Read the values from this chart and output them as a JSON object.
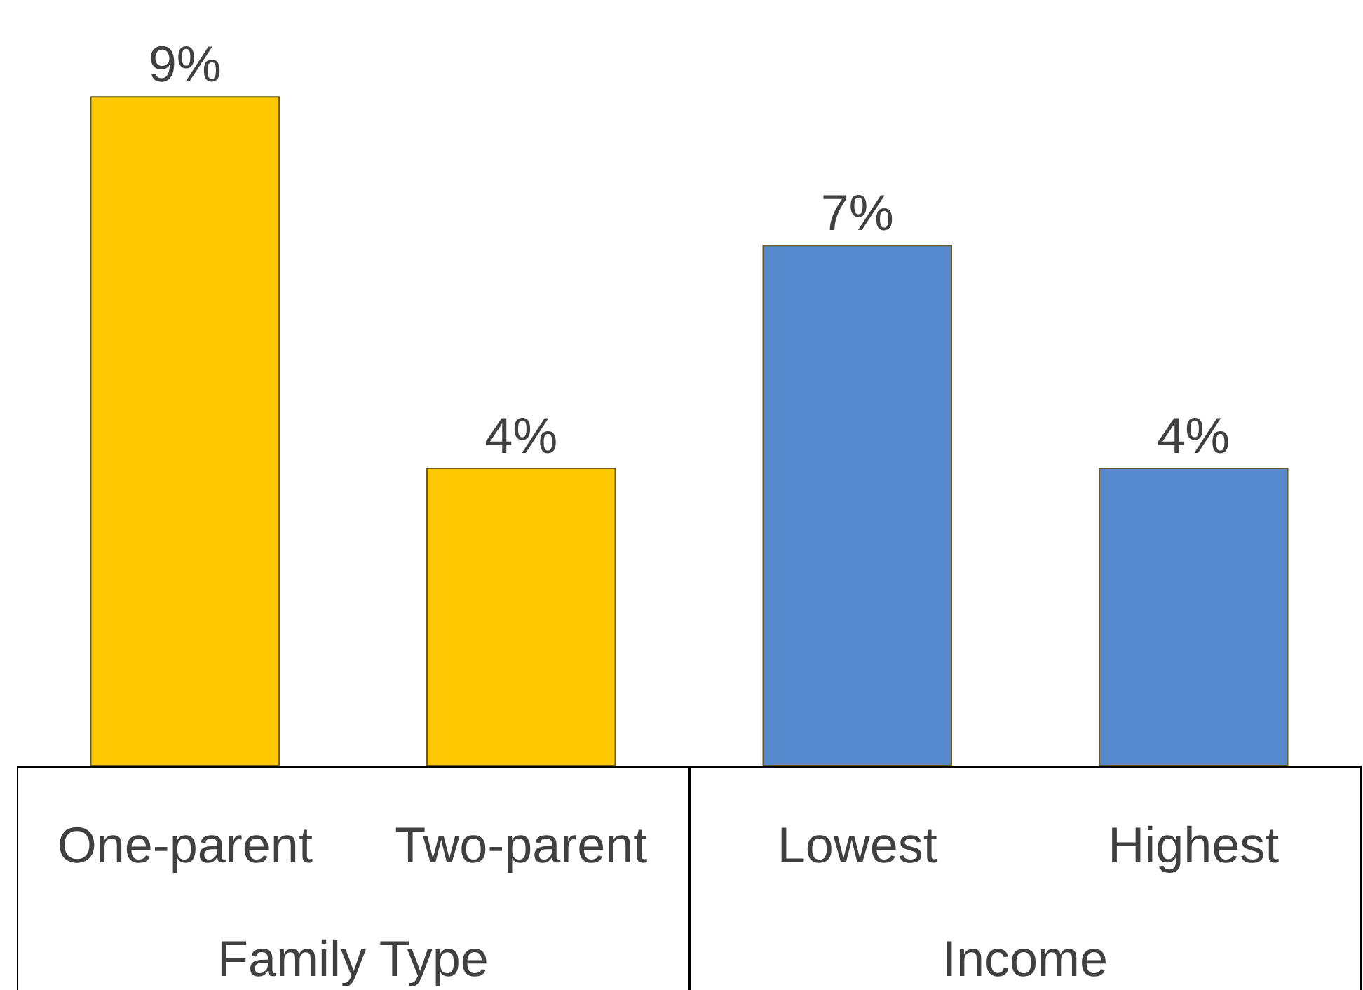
{
  "chart_data": {
    "type": "bar",
    "categories": [
      "One-parent",
      "Two-parent",
      "Lowest",
      "Highest"
    ],
    "values": [
      9,
      4,
      7,
      4
    ],
    "value_labels": [
      "9%",
      "4%",
      "7%",
      "4%"
    ],
    "colors": [
      "#ffc800",
      "#ffc800",
      "#5588cc",
      "#5588cc"
    ],
    "annotations": [
      "Family Type",
      "Income"
    ]
  }
}
